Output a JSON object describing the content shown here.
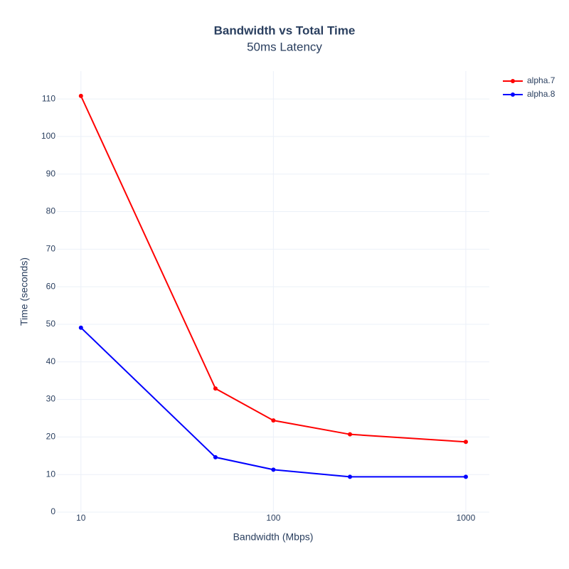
{
  "chart_data": {
    "type": "line",
    "title": "Bandwidth vs Total Time",
    "subtitle": "50ms Latency",
    "x_label": "Bandwidth (Mbps)",
    "y_label": "Time (seconds)",
    "x": [
      10,
      50,
      100,
      250,
      1000
    ],
    "xscale": "log",
    "xlim": [
      7.5,
      1325
    ],
    "xticks": [
      10,
      100,
      1000
    ],
    "ylim": [
      0,
      117.4
    ],
    "yticks": [
      0,
      10,
      20,
      30,
      40,
      50,
      60,
      70,
      80,
      90,
      100,
      110
    ],
    "grid": true,
    "legend": "top-right",
    "series": [
      {
        "name": "alpha.7",
        "color": "#ff0000",
        "values": [
          110.8,
          32.9,
          24.4,
          20.7,
          18.7
        ]
      },
      {
        "name": "alpha.8",
        "color": "#0000ff",
        "values": [
          49.1,
          14.6,
          11.3,
          9.4,
          9.4
        ]
      }
    ]
  }
}
